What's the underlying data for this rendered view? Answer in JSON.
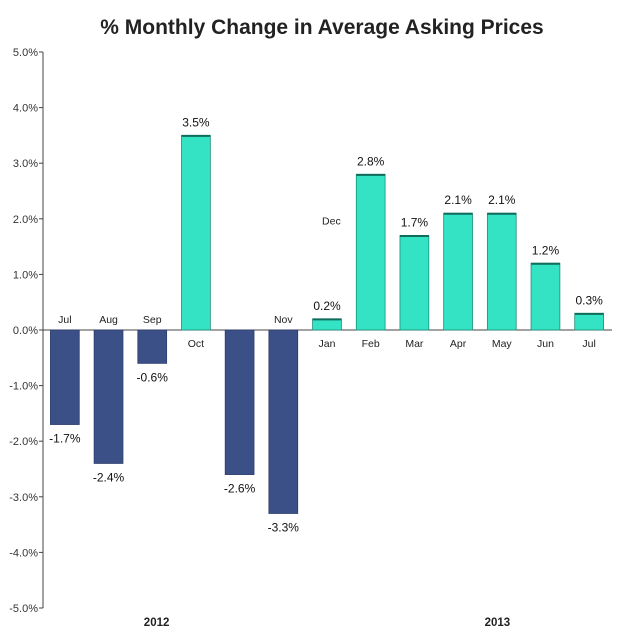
{
  "chart_data": {
    "type": "bar",
    "title": "% Monthly Change in Average Asking Prices",
    "xlabel": "",
    "ylabel": "",
    "ylim": [
      -5.0,
      5.0
    ],
    "yticks": [
      "5.0%",
      "4.0%",
      "3.0%",
      "2.0%",
      "1.0%",
      "0.0%",
      "-1.0%",
      "-2.0%",
      "-3.0%",
      "-4.0%",
      "-5.0%"
    ],
    "ytick_values": [
      5,
      4,
      3,
      2,
      1,
      0,
      -1,
      -2,
      -3,
      -4,
      -5
    ],
    "categories": [
      "Jul",
      "Aug",
      "Sep",
      "Oct",
      "",
      "Nov",
      "Jan",
      "Feb",
      "Mar",
      "Apr",
      "May",
      "Jun",
      "Jul"
    ],
    "values": [
      -1.7,
      -2.4,
      -0.6,
      3.5,
      -2.6,
      -3.3,
      0.2,
      2.8,
      1.7,
      2.1,
      2.1,
      1.2,
      0.3
    ],
    "data_labels": [
      "-1.7%",
      "-2.4%",
      "-0.6%",
      "3.5%",
      "-2.6%",
      "-3.3%",
      "0.2%",
      "2.8%",
      "1.7%",
      "2.1%",
      "2.1%",
      "1.2%",
      "0.3%"
    ],
    "annotations": [
      "Dec"
    ],
    "year_groups": [
      "2012",
      "2013"
    ],
    "colors": {
      "negative": "#3c5088",
      "positive": "#33e3c4",
      "positive_edge": "#1c8f7a"
    },
    "grid": false,
    "legend": "none"
  }
}
